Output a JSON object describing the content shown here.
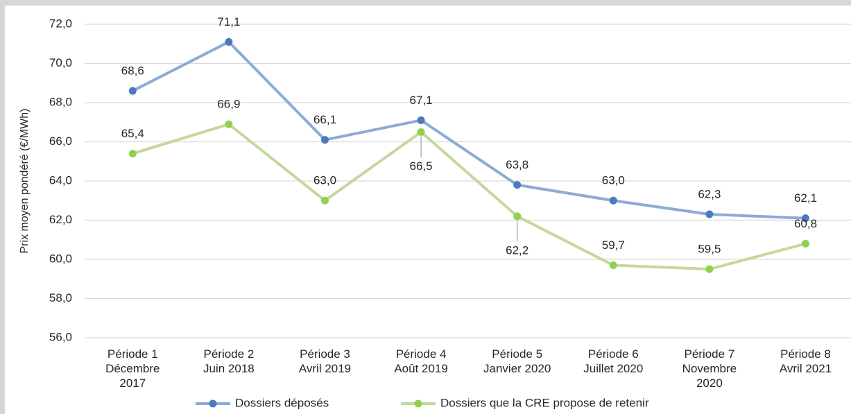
{
  "chart_data": {
    "type": "line",
    "y_label": "Prix moyen pondéré (€/MWh)",
    "categories": [
      "Période 1\nDécembre\n2017",
      "Période 2\nJuin 2018",
      "Période 3\nAvril 2019",
      "Période 4\nAoût 2019",
      "Période 5\nJanvier 2020",
      "Période 6\nJuillet 2020",
      "Période 7\nNovembre\n2020",
      "Période 8\nAvril 2021"
    ],
    "series": [
      {
        "name": "Dossiers déposés",
        "color": "#8eaad6",
        "marker_color": "#4e79bd",
        "values": [
          68.6,
          71.1,
          66.1,
          67.1,
          63.8,
          63.0,
          62.3,
          62.1
        ],
        "value_labels": [
          "68,6",
          "71,1",
          "66,1",
          "67,1",
          "63,8",
          "63,0",
          "62,3",
          "62,1"
        ]
      },
      {
        "name": "Dossiers que la CRE propose de retenir",
        "color": "#c3d89c",
        "marker_color": "#92d050",
        "values": [
          65.4,
          66.9,
          63.0,
          66.5,
          62.2,
          59.7,
          59.5,
          60.8
        ],
        "value_labels": [
          "65,4",
          "66,9",
          "63,0",
          "66,5",
          "62,2",
          "59,7",
          "59,5",
          "60,8"
        ]
      }
    ],
    "ylim": [
      56,
      72
    ],
    "yticks": [
      {
        "value": 56,
        "label": "56,0"
      },
      {
        "value": 58,
        "label": "58,0"
      },
      {
        "value": 60,
        "label": "60,0"
      },
      {
        "value": 62,
        "label": "62,0"
      },
      {
        "value": 64,
        "label": "64,0"
      },
      {
        "value": 66,
        "label": "66,0"
      },
      {
        "value": 68,
        "label": "68,0"
      },
      {
        "value": 70,
        "label": "70,0"
      },
      {
        "value": 72,
        "label": "72,0"
      }
    ],
    "grid": true,
    "legend": "bottom"
  }
}
